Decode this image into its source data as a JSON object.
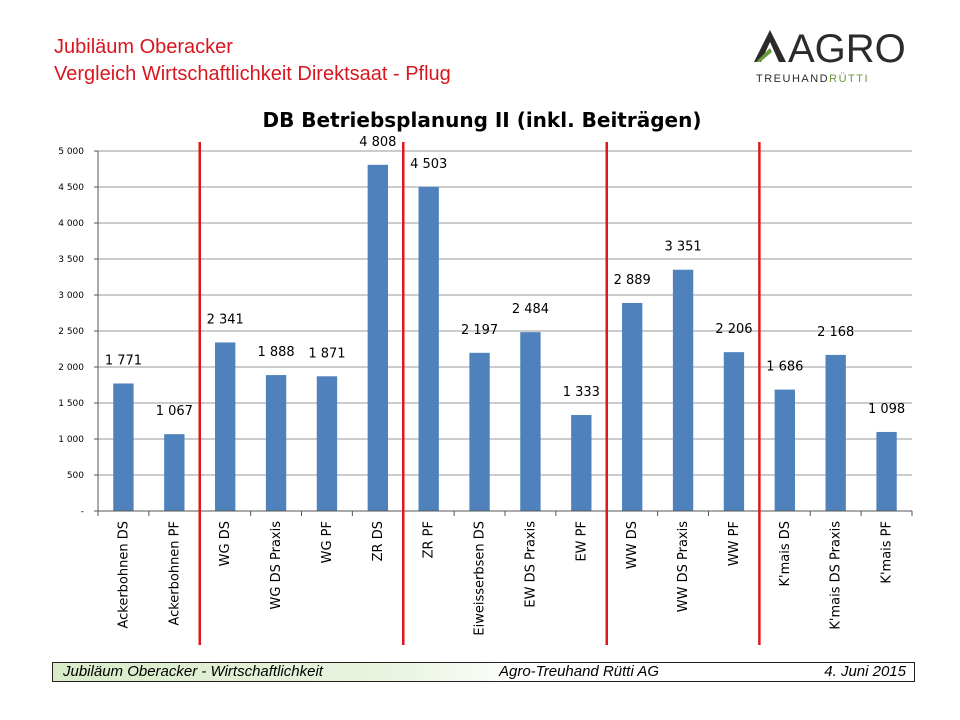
{
  "header": {
    "title_line1": "Jubiläum Oberacker",
    "title_line2": "Vergleich Wirtschaftlichkeit Direktsaat - Pflug"
  },
  "logo": {
    "brand": "AGRO",
    "sub_part1": "TREUHAND",
    "sub_part2": "RÜTTI",
    "brand_color": "#2b2b2b",
    "accent_color": "#6a9a3a"
  },
  "chart_data": {
    "type": "bar",
    "title": "DB Betriebsplanung II (inkl. Beiträgen)",
    "xlabel": "",
    "ylabel": "",
    "ylim": [
      0,
      5000
    ],
    "yticks": [
      0,
      500,
      1000,
      1500,
      2000,
      2500,
      3000,
      3500,
      4000,
      4500,
      5000
    ],
    "ytick_labels": [
      "-",
      "500",
      "1 000",
      "1 500",
      "2 000",
      "2 500",
      "3 000",
      "3 500",
      "4 000",
      "4 500",
      "5 000"
    ],
    "grid": true,
    "bar_color": "#4f81bd",
    "separator_color": "#e0161e",
    "separators_after_index": [
      1,
      5,
      9,
      12
    ],
    "categories": [
      "Ackerbohnen DS",
      "Ackerbohnen PF",
      "WG DS",
      "WG DS Praxis",
      "WG PF",
      "ZR DS",
      "ZR PF",
      "Eiweisserbsen DS",
      "EW DS Praxis",
      "EW PF",
      "WW DS",
      "WW DS Praxis",
      "WW PF",
      "K'mais DS",
      "K'mais DS Praxis",
      "K'mais PF"
    ],
    "values": [
      1771,
      1067,
      2341,
      1888,
      1871,
      4808,
      4503,
      2197,
      2484,
      1333,
      2889,
      3351,
      2206,
      1686,
      2168,
      1098
    ],
    "data_labels": [
      "1 771",
      "1 067",
      "2 341",
      "1 888",
      "1 871",
      "4 808",
      "4 503",
      "2 197",
      "2 484",
      "1 333",
      "2 889",
      "3 351",
      "2 206",
      "1 686",
      "2 168",
      "1 098"
    ]
  },
  "footer": {
    "left": "Jubiläum Oberacker - Wirtschaftlichkeit",
    "middle": "Agro-Treuhand Rütti AG",
    "right": "4. Juni 2015"
  }
}
